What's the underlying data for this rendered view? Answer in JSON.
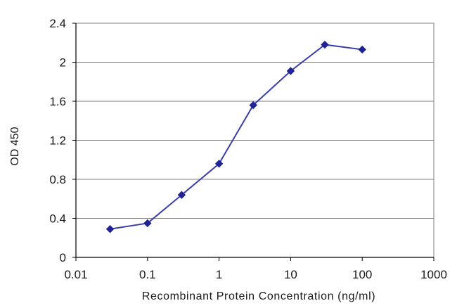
{
  "chart_data": {
    "type": "line",
    "xlabel": "Recombinant Protein Concentration (ng/ml)",
    "ylabel": "OD 450",
    "xscale": "log",
    "xlim": [
      0.01,
      1000
    ],
    "ylim": [
      0,
      2.4
    ],
    "xticks": [
      "0.01",
      "0.1",
      "1",
      "10",
      "100",
      "1000"
    ],
    "yticks": [
      "0",
      "0.4",
      "0.8",
      "1.2",
      "1.6",
      "2",
      "2.4"
    ],
    "grid": "horizontal",
    "legend": "none",
    "series": [
      {
        "x": [
          0.03,
          0.1,
          0.3,
          1,
          3,
          10,
          30,
          100
        ],
        "y": [
          0.29,
          0.35,
          0.64,
          0.96,
          1.56,
          1.91,
          2.18,
          2.13
        ],
        "color": "#2b2f9e",
        "marker": "diamond"
      }
    ]
  },
  "colors": {
    "grid": "#7f7f7f",
    "axis": "#000000",
    "line": "#3a3fa8",
    "marker": "#1f2393"
  }
}
